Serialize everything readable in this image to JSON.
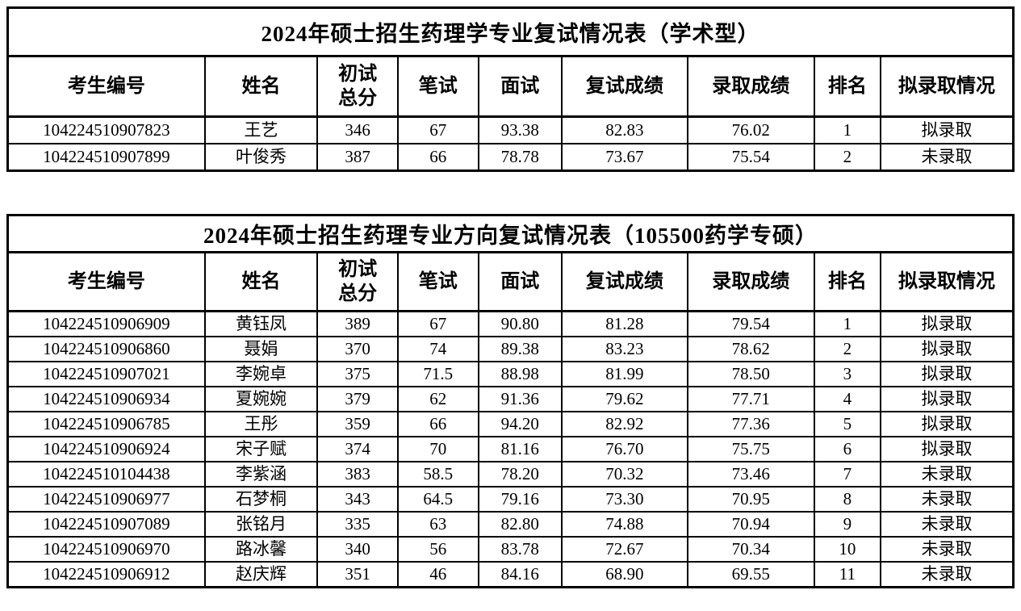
{
  "page": {
    "background_color": "#ffffff",
    "border_color": "#000000"
  },
  "columns": [
    "考生编号",
    "姓名",
    "初试\n总分",
    "笔试",
    "面试",
    "复试成绩",
    "录取成绩",
    "排名",
    "拟录取情况"
  ],
  "tables": [
    {
      "id": "academic",
      "title": "2024年硕士招生药理学专业复试情况表（学术型）",
      "rows": [
        [
          "104224510907823",
          "王艺",
          "346",
          "67",
          "93.38",
          "82.83",
          "76.02",
          "1",
          "拟录取"
        ],
        [
          "104224510907899",
          "叶俊秀",
          "387",
          "66",
          "78.78",
          "73.67",
          "75.54",
          "2",
          "未录取"
        ]
      ]
    },
    {
      "id": "professional",
      "title": "2024年硕士招生药理专业方向复试情况表（105500药学专硕）",
      "rows": [
        [
          "104224510906909",
          "黄钰凤",
          "389",
          "67",
          "90.80",
          "81.28",
          "79.54",
          "1",
          "拟录取"
        ],
        [
          "104224510906860",
          "聂娟",
          "370",
          "74",
          "89.38",
          "83.23",
          "78.62",
          "2",
          "拟录取"
        ],
        [
          "104224510907021",
          "李婉卓",
          "375",
          "71.5",
          "88.98",
          "81.99",
          "78.50",
          "3",
          "拟录取"
        ],
        [
          "104224510906934",
          "夏婉婉",
          "379",
          "62",
          "91.36",
          "79.62",
          "77.71",
          "4",
          "拟录取"
        ],
        [
          "104224510906785",
          "王彤",
          "359",
          "66",
          "94.20",
          "82.92",
          "77.36",
          "5",
          "拟录取"
        ],
        [
          "104224510906924",
          "宋子赋",
          "374",
          "70",
          "81.16",
          "76.70",
          "75.75",
          "6",
          "拟录取"
        ],
        [
          "104224510104438",
          "李紫涵",
          "383",
          "58.5",
          "78.20",
          "70.32",
          "73.46",
          "7",
          "未录取"
        ],
        [
          "104224510906977",
          "石梦桐",
          "343",
          "64.5",
          "79.16",
          "73.30",
          "70.95",
          "8",
          "未录取"
        ],
        [
          "104224510907089",
          "张铭月",
          "335",
          "63",
          "82.80",
          "74.88",
          "70.94",
          "9",
          "未录取"
        ],
        [
          "104224510906970",
          "路冰馨",
          "340",
          "56",
          "83.78",
          "72.67",
          "70.34",
          "10",
          "未录取"
        ],
        [
          "104224510906912",
          "赵庆辉",
          "351",
          "46",
          "84.16",
          "68.90",
          "69.55",
          "11",
          "未录取"
        ]
      ]
    }
  ]
}
